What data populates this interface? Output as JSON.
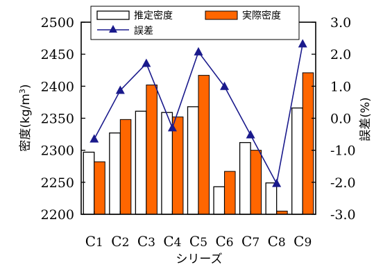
{
  "chart_data": {
    "type": "bar",
    "categories": [
      "C1",
      "C2",
      "C3",
      "C4",
      "C5",
      "C6",
      "C7",
      "C8",
      "C9"
    ],
    "series": [
      {
        "name": "推定密度",
        "kind": "bar",
        "axis": "left",
        "color": "#ffffff",
        "values": [
          2297,
          2327,
          2361,
          2359,
          2368,
          2243,
          2312,
          2249,
          2366
        ]
      },
      {
        "name": "実際密度",
        "kind": "bar",
        "axis": "left",
        "color": "#ff6600",
        "values": [
          2282,
          2348,
          2402,
          2352,
          2417,
          2267,
          2300,
          2205,
          2421
        ]
      },
      {
        "name": "誤差",
        "kind": "line",
        "axis": "right",
        "color": "#1a1a8c",
        "marker": "triangle",
        "values": [
          -0.65,
          0.87,
          1.71,
          -0.3,
          2.07,
          0.99,
          -0.52,
          -2.04,
          2.32
        ]
      }
    ],
    "xlabel": "シリーズ",
    "ylabel": "密度(kg/m3)",
    "ylabel_base": "密度(kg/m",
    "ylabel_sup": "3",
    "ylabel_end": ")",
    "y2label": "誤差(%)",
    "ylim": [
      2200,
      2500
    ],
    "y2lim": [
      -3.0,
      3.0
    ],
    "yticks": [
      "2200",
      "2250",
      "2300",
      "2350",
      "2400",
      "2450",
      "2500"
    ],
    "y2ticks": [
      "-3.0",
      "-2.0",
      "-1.0",
      "0.0",
      "1.0",
      "2.0",
      "3.0"
    ],
    "category_labels": [
      {
        "main": "C",
        "sub": "1"
      },
      {
        "main": "C",
        "sub": "2"
      },
      {
        "main": "C",
        "sub": "3"
      },
      {
        "main": "C",
        "sub": "4"
      },
      {
        "main": "C",
        "sub": "5"
      },
      {
        "main": "C",
        "sub": "6"
      },
      {
        "main": "C",
        "sub": "7"
      },
      {
        "main": "C",
        "sub": "8"
      },
      {
        "main": "C",
        "sub": "9"
      }
    ],
    "grid": false,
    "legend": "top"
  }
}
